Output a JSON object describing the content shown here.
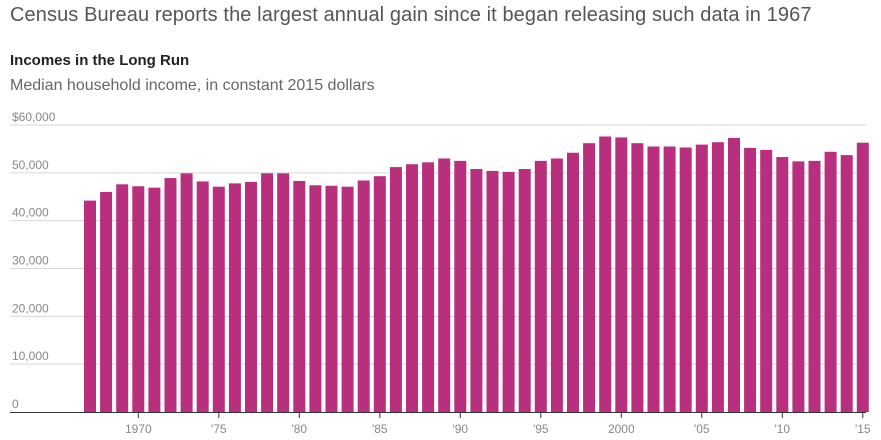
{
  "headline": "Census Bureau reports the largest annual gain since it began releasing such data in 1967",
  "chart_data": {
    "type": "bar",
    "title": "Incomes in the Long Run",
    "subtitle": "Median household income, in constant 2015 dollars",
    "xlabel": "",
    "ylabel": "",
    "ylim": [
      0,
      60000
    ],
    "grid": true,
    "bar_color": "#b82f7e",
    "y_ticks": [
      {
        "value": 60000,
        "label": "$60,000"
      },
      {
        "value": 50000,
        "label": "50,000"
      },
      {
        "value": 40000,
        "label": "40,000"
      },
      {
        "value": 30000,
        "label": "30,000"
      },
      {
        "value": 20000,
        "label": "20,000"
      },
      {
        "value": 10000,
        "label": "10,000"
      },
      {
        "value": 0,
        "label": "0"
      }
    ],
    "x_ticks": [
      {
        "year": 1970,
        "label": "1970"
      },
      {
        "year": 1975,
        "label": "'75"
      },
      {
        "year": 1980,
        "label": "'80"
      },
      {
        "year": 1985,
        "label": "'85"
      },
      {
        "year": 1990,
        "label": "'90"
      },
      {
        "year": 1995,
        "label": "'95"
      },
      {
        "year": 2000,
        "label": "2000"
      },
      {
        "year": 2005,
        "label": "'05"
      },
      {
        "year": 2010,
        "label": "'10"
      },
      {
        "year": 2015,
        "label": "'15"
      }
    ],
    "categories": [
      1967,
      1968,
      1969,
      1970,
      1971,
      1972,
      1973,
      1974,
      1975,
      1976,
      1977,
      1978,
      1979,
      1980,
      1981,
      1982,
      1983,
      1984,
      1985,
      1986,
      1987,
      1988,
      1989,
      1990,
      1991,
      1992,
      1993,
      1994,
      1995,
      1996,
      1997,
      1998,
      1999,
      2000,
      2001,
      2002,
      2003,
      2004,
      2005,
      2006,
      2007,
      2008,
      2009,
      2010,
      2011,
      2012,
      2013,
      2014,
      2015
    ],
    "values": [
      44200,
      46000,
      47600,
      47200,
      46900,
      48900,
      49900,
      48200,
      47100,
      47800,
      48100,
      49900,
      49900,
      48300,
      47400,
      47300,
      47100,
      48400,
      49300,
      51200,
      51800,
      52200,
      53000,
      52500,
      50800,
      50400,
      50200,
      50800,
      52500,
      53000,
      54200,
      56200,
      57600,
      57400,
      56200,
      55500,
      55500,
      55300,
      55900,
      56400,
      57300,
      55200,
      54800,
      53300,
      52400,
      52500,
      54400,
      53700,
      56300
    ]
  }
}
